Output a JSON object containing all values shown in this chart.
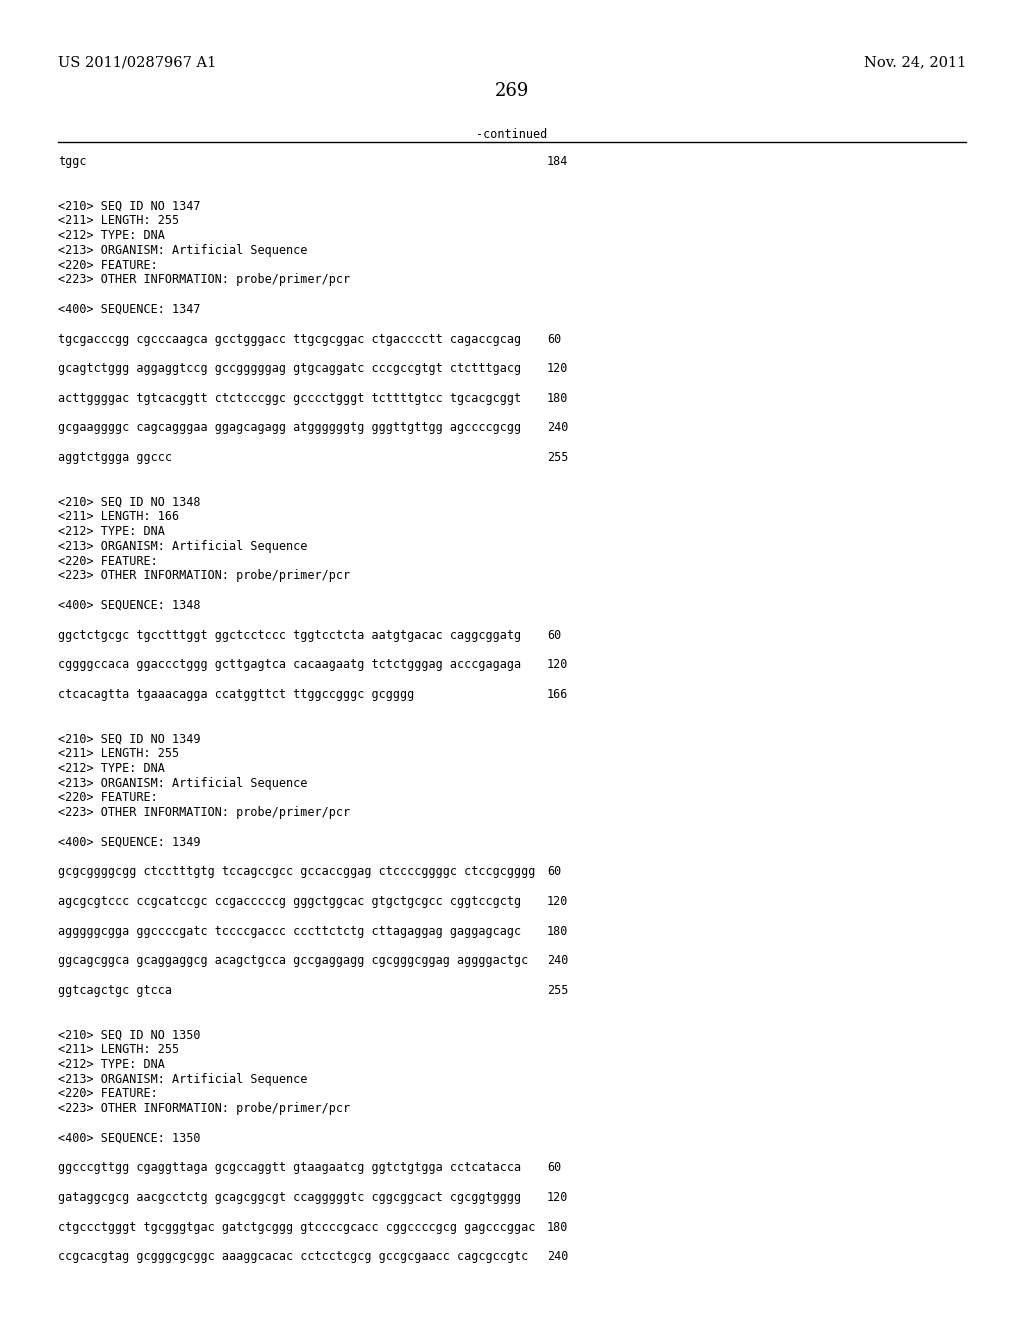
{
  "header_left": "US 2011/0287967 A1",
  "header_right": "Nov. 24, 2011",
  "page_number": "269",
  "continued_label": "-continued",
  "background_color": "#ffffff",
  "text_color": "#000000",
  "font_size_header": 10.5,
  "font_size_body": 8.5,
  "font_size_page": 13.0,
  "lines": [
    {
      "type": "sequence_end",
      "text": "tggc",
      "num": "184"
    },
    {
      "type": "blank"
    },
    {
      "type": "blank"
    },
    {
      "type": "meta",
      "text": "<210> SEQ ID NO 1347"
    },
    {
      "type": "meta",
      "text": "<211> LENGTH: 255"
    },
    {
      "type": "meta",
      "text": "<212> TYPE: DNA"
    },
    {
      "type": "meta",
      "text": "<213> ORGANISM: Artificial Sequence"
    },
    {
      "type": "meta",
      "text": "<220> FEATURE:"
    },
    {
      "type": "meta",
      "text": "<223> OTHER INFORMATION: probe/primer/pcr"
    },
    {
      "type": "blank"
    },
    {
      "type": "meta",
      "text": "<400> SEQUENCE: 1347"
    },
    {
      "type": "blank"
    },
    {
      "type": "sequence",
      "text": "tgcgacccgg cgcccaagca gcctgggacc ttgcgcggac ctgacccctt cagaccgcag",
      "num": "60"
    },
    {
      "type": "blank"
    },
    {
      "type": "sequence",
      "text": "gcagtctggg aggaggtccg gccgggggag gtgcaggatc cccgccgtgt ctctttgacg",
      "num": "120"
    },
    {
      "type": "blank"
    },
    {
      "type": "sequence",
      "text": "acttggggac tgtcacggtt ctctcccggc gcccctgggt tcttttgtcc tgcacgcggt",
      "num": "180"
    },
    {
      "type": "blank"
    },
    {
      "type": "sequence",
      "text": "gcgaaggggc cagcagggaa ggagcagagg atggggggtg gggttgttgg agccccgcgg",
      "num": "240"
    },
    {
      "type": "blank"
    },
    {
      "type": "sequence",
      "text": "aggtctggga ggccc",
      "num": "255"
    },
    {
      "type": "blank"
    },
    {
      "type": "blank"
    },
    {
      "type": "meta",
      "text": "<210> SEQ ID NO 1348"
    },
    {
      "type": "meta",
      "text": "<211> LENGTH: 166"
    },
    {
      "type": "meta",
      "text": "<212> TYPE: DNA"
    },
    {
      "type": "meta",
      "text": "<213> ORGANISM: Artificial Sequence"
    },
    {
      "type": "meta",
      "text": "<220> FEATURE:"
    },
    {
      "type": "meta",
      "text": "<223> OTHER INFORMATION: probe/primer/pcr"
    },
    {
      "type": "blank"
    },
    {
      "type": "meta",
      "text": "<400> SEQUENCE: 1348"
    },
    {
      "type": "blank"
    },
    {
      "type": "sequence",
      "text": "ggctctgcgc tgcctttggt ggctcctccc tggtcctcta aatgtgacac caggcggatg",
      "num": "60"
    },
    {
      "type": "blank"
    },
    {
      "type": "sequence",
      "text": "cggggccaca ggaccctggg gcttgagtca cacaagaatg tctctgggag acccgagaga",
      "num": "120"
    },
    {
      "type": "blank"
    },
    {
      "type": "sequence",
      "text": "ctcacagtta tgaaacagga ccatggttct ttggccgggc gcgggg",
      "num": "166"
    },
    {
      "type": "blank"
    },
    {
      "type": "blank"
    },
    {
      "type": "meta",
      "text": "<210> SEQ ID NO 1349"
    },
    {
      "type": "meta",
      "text": "<211> LENGTH: 255"
    },
    {
      "type": "meta",
      "text": "<212> TYPE: DNA"
    },
    {
      "type": "meta",
      "text": "<213> ORGANISM: Artificial Sequence"
    },
    {
      "type": "meta",
      "text": "<220> FEATURE:"
    },
    {
      "type": "meta",
      "text": "<223> OTHER INFORMATION: probe/primer/pcr"
    },
    {
      "type": "blank"
    },
    {
      "type": "meta",
      "text": "<400> SEQUENCE: 1349"
    },
    {
      "type": "blank"
    },
    {
      "type": "sequence",
      "text": "gcgcggggcgg ctcctttgtg tccagccgcc gccaccggag ctccccggggc ctccgcgggg",
      "num": "60"
    },
    {
      "type": "blank"
    },
    {
      "type": "sequence",
      "text": "agcgcgtccc ccgcatccgc ccgacccccg gggctggcac gtgctgcgcc cggtccgctg",
      "num": "120"
    },
    {
      "type": "blank"
    },
    {
      "type": "sequence",
      "text": "agggggcgga ggccccgatc tccccgaccc cccttctctg cttagaggag gaggagcagc",
      "num": "180"
    },
    {
      "type": "blank"
    },
    {
      "type": "sequence",
      "text": "ggcagcggca gcaggaggcg acagctgcca gccgaggagg cgcgggcggag aggggactgc",
      "num": "240"
    },
    {
      "type": "blank"
    },
    {
      "type": "sequence",
      "text": "ggtcagctgc gtcca",
      "num": "255"
    },
    {
      "type": "blank"
    },
    {
      "type": "blank"
    },
    {
      "type": "meta",
      "text": "<210> SEQ ID NO 1350"
    },
    {
      "type": "meta",
      "text": "<211> LENGTH: 255"
    },
    {
      "type": "meta",
      "text": "<212> TYPE: DNA"
    },
    {
      "type": "meta",
      "text": "<213> ORGANISM: Artificial Sequence"
    },
    {
      "type": "meta",
      "text": "<220> FEATURE:"
    },
    {
      "type": "meta",
      "text": "<223> OTHER INFORMATION: probe/primer/pcr"
    },
    {
      "type": "blank"
    },
    {
      "type": "meta",
      "text": "<400> SEQUENCE: 1350"
    },
    {
      "type": "blank"
    },
    {
      "type": "sequence",
      "text": "ggcccgttgg cgaggttaga gcgccaggtt gtaagaatcg ggtctgtgga cctcatacca",
      "num": "60"
    },
    {
      "type": "blank"
    },
    {
      "type": "sequence",
      "text": "gataggcgcg aacgcctctg gcagcggcgt ccagggggtc cggcggcact cgcggtgggg",
      "num": "120"
    },
    {
      "type": "blank"
    },
    {
      "type": "sequence",
      "text": "ctgccctgggt tgcgggtgac gatctgcggg gtccccgcacc cggccccgcg gagcccggac",
      "num": "180"
    },
    {
      "type": "blank"
    },
    {
      "type": "sequence",
      "text": "ccgcacgtag gcgggcgcggc aaaggcacac cctcctcgcg gccgcgaacc cagcgccgtc",
      "num": "240"
    }
  ]
}
